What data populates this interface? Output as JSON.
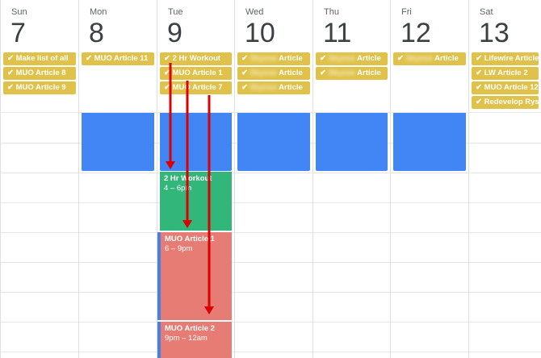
{
  "days": [
    {
      "dow": "Sun",
      "num": "7",
      "tasks": [
        "Make list of all",
        "MUO Article 8",
        "MUO Article 9"
      ]
    },
    {
      "dow": "Mon",
      "num": "8",
      "tasks": [
        "MUO Article 11"
      ]
    },
    {
      "dow": "Tue",
      "num": "9",
      "tasks": [
        "2 Hr Workout",
        "MUO Article 1",
        "MUO Article 7"
      ]
    },
    {
      "dow": "Wed",
      "num": "10",
      "tasks": [
        "Article",
        "Article",
        "Article"
      ]
    },
    {
      "dow": "Thu",
      "num": "11",
      "tasks": [
        "Article",
        "Article"
      ]
    },
    {
      "dow": "Fri",
      "num": "12",
      "tasks": [
        "Article"
      ]
    },
    {
      "dow": "Sat",
      "num": "13",
      "tasks": [
        "Lifewire Article",
        "LW Article 2",
        "MUO Article 12",
        "Redevelop Rys"
      ]
    }
  ],
  "events": [
    {
      "title": "2 Hr Workout",
      "time": "4 – 6pm",
      "color": "#33b679"
    },
    {
      "title": "MUO Article 1",
      "time": "6 – 9pm",
      "color": "#e67c73"
    },
    {
      "title": "MUO Article 2",
      "time": "9pm – 12am",
      "color": "#e67c73"
    }
  ],
  "colors": {
    "task": "#e0c24a",
    "block": "#4285f4",
    "arrow": "#dd0000"
  }
}
